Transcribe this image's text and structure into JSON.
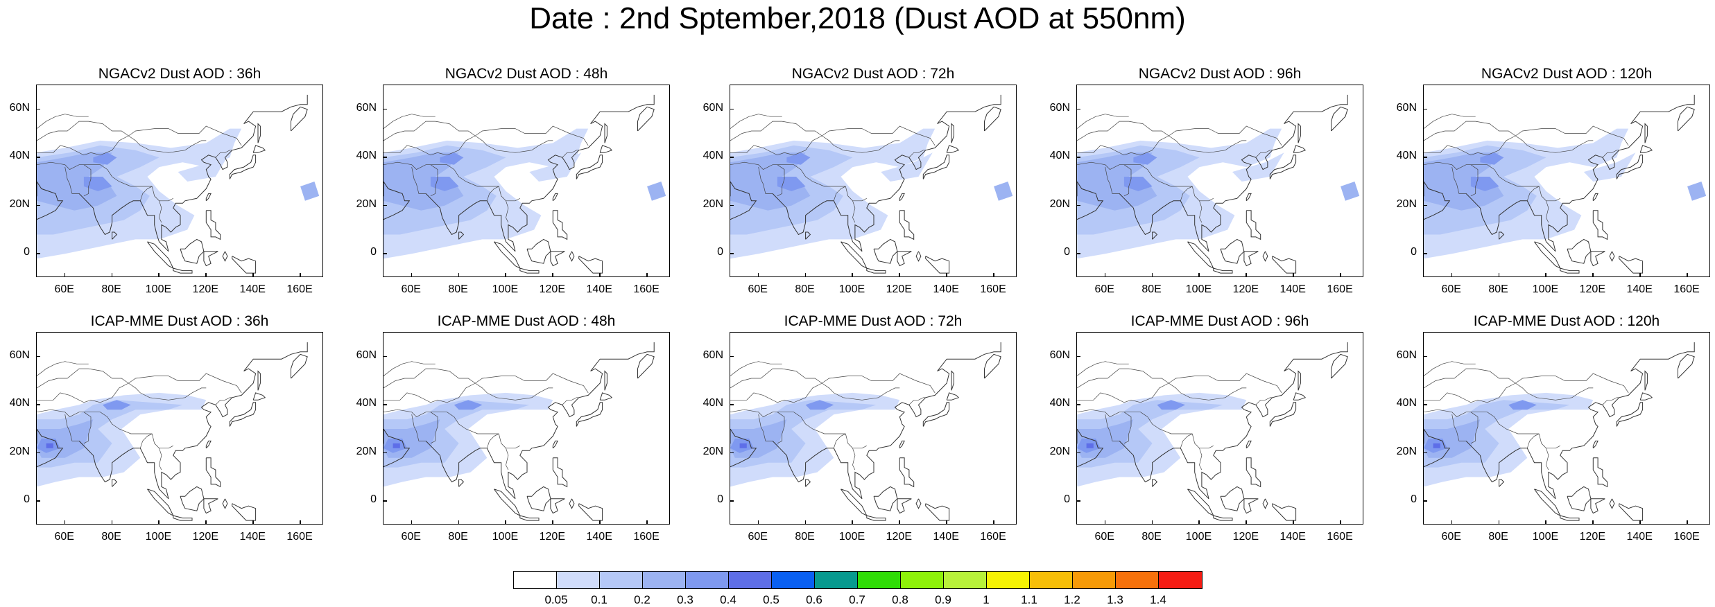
{
  "title": "Date : 2nd Sptember,2018 (Dust AOD at 550nm)",
  "panels": [
    {
      "title": "NGACv2 Dust AOD : 36h"
    },
    {
      "title": "NGACv2 Dust AOD : 48h"
    },
    {
      "title": "NGACv2 Dust AOD : 72h"
    },
    {
      "title": "NGACv2 Dust AOD : 96h"
    },
    {
      "title": "NGACv2 Dust AOD : 120h"
    },
    {
      "title": "ICAP-MME Dust AOD : 36h"
    },
    {
      "title": "ICAP-MME Dust AOD : 48h"
    },
    {
      "title": "ICAP-MME Dust AOD : 72h"
    },
    {
      "title": "ICAP-MME Dust AOD : 96h"
    },
    {
      "title": "ICAP-MME Dust AOD : 120h"
    }
  ],
  "lat_ticks": [
    "60N",
    "40N",
    "20N",
    "0"
  ],
  "lon_ticks": [
    "60E",
    "80E",
    "100E",
    "120E",
    "140E",
    "160E"
  ],
  "colorbar": {
    "labels": [
      "0.05",
      "0.1",
      "0.2",
      "0.3",
      "0.4",
      "0.5",
      "0.6",
      "0.7",
      "0.8",
      "0.9",
      "1",
      "1.1",
      "1.2",
      "1.3",
      "1.4"
    ],
    "colors": [
      "#ffffff",
      "#d0dcfb",
      "#b5c8f7",
      "#9cb3f2",
      "#7f99f0",
      "#5e6ee8",
      "#0a5ff2",
      "#079a8f",
      "#2fdc06",
      "#8ef20a",
      "#b8f23a",
      "#f6f304",
      "#f7be08",
      "#f79a08",
      "#f7710c",
      "#f51c14"
    ]
  },
  "map_style": {
    "dust_light": "#d0dcfb",
    "dust_mid": "#b5c8f7",
    "dust_dark": "#9cb3f2",
    "dust_core": "#7f99f0",
    "dust_peak": "#5e6ee8"
  }
}
